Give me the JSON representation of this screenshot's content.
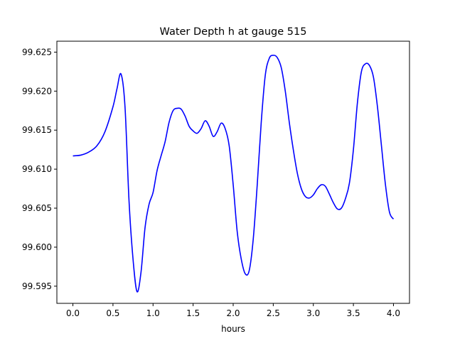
{
  "chart_data": {
    "type": "line",
    "title": "Water Depth h at gauge 515",
    "xlabel": "hours",
    "ylabel": "",
    "xlim": [
      -0.2,
      4.2
    ],
    "ylim": [
      99.5928,
      99.6264
    ],
    "xticks": [
      0.0,
      0.5,
      1.0,
      1.5,
      2.0,
      2.5,
      3.0,
      3.5,
      4.0
    ],
    "xtick_labels": [
      "0.0",
      "0.5",
      "1.0",
      "1.5",
      "2.0",
      "2.5",
      "3.0",
      "3.5",
      "4.0"
    ],
    "yticks": [
      99.595,
      99.6,
      99.605,
      99.61,
      99.615,
      99.62,
      99.625
    ],
    "ytick_labels": [
      "99.595",
      "99.600",
      "99.605",
      "99.610",
      "99.615",
      "99.620",
      "99.625"
    ],
    "grid": false,
    "series": [
      {
        "color": "#0000ff",
        "x": [
          0.0,
          0.1,
          0.2,
          0.3,
          0.4,
          0.5,
          0.55,
          0.6,
          0.65,
          0.7,
          0.75,
          0.8,
          0.85,
          0.9,
          0.95,
          1.0,
          1.05,
          1.1,
          1.15,
          1.2,
          1.25,
          1.3,
          1.35,
          1.4,
          1.45,
          1.5,
          1.55,
          1.6,
          1.65,
          1.7,
          1.75,
          1.8,
          1.85,
          1.9,
          1.95,
          2.0,
          2.05,
          2.1,
          2.15,
          2.2,
          2.25,
          2.3,
          2.35,
          2.4,
          2.45,
          2.5,
          2.55,
          2.6,
          2.65,
          2.7,
          2.75,
          2.8,
          2.85,
          2.9,
          2.95,
          3.0,
          3.05,
          3.1,
          3.15,
          3.2,
          3.25,
          3.3,
          3.35,
          3.4,
          3.45,
          3.5,
          3.55,
          3.6,
          3.65,
          3.7,
          3.75,
          3.8,
          3.85,
          3.9,
          3.95,
          4.0
        ],
        "y": [
          99.6117,
          99.6118,
          99.6122,
          99.613,
          99.6148,
          99.618,
          99.6203,
          99.6222,
          99.618,
          99.606,
          99.5985,
          99.5943,
          99.5968,
          99.6025,
          99.6055,
          99.607,
          99.6098,
          99.6117,
          99.6135,
          99.616,
          99.6175,
          99.6178,
          99.6177,
          99.6168,
          99.6155,
          99.6149,
          99.6146,
          99.6152,
          99.6162,
          99.6155,
          99.6142,
          99.6148,
          99.6159,
          99.6152,
          99.613,
          99.608,
          99.602,
          99.5985,
          99.5966,
          99.597,
          99.601,
          99.608,
          99.616,
          99.622,
          99.6242,
          99.6246,
          99.6243,
          99.623,
          99.62,
          99.616,
          99.6125,
          99.6095,
          99.6075,
          99.6065,
          99.6063,
          99.6067,
          99.6075,
          99.608,
          99.6078,
          99.6068,
          99.6057,
          99.6049,
          99.605,
          99.6062,
          99.6082,
          99.6125,
          99.6185,
          99.6225,
          99.6235,
          99.6233,
          99.6218,
          99.618,
          99.613,
          99.608,
          99.6045,
          99.6036
        ]
      }
    ]
  }
}
